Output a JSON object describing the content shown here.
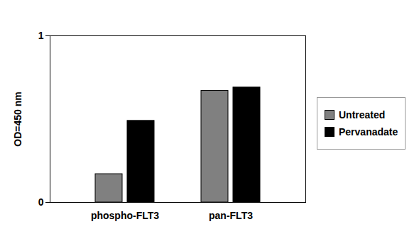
{
  "chart_data": {
    "type": "bar",
    "y_label": "OD=450 nm",
    "categories": [
      "phospho-FLT3",
      "pan-FLT3"
    ],
    "series": [
      {
        "name": "Untreated",
        "color": "#808080",
        "values": [
          0.17,
          0.67
        ]
      },
      {
        "name": "Pervanadate",
        "color": "#000000",
        "values": [
          0.49,
          0.69
        ]
      }
    ],
    "ylim": [
      0,
      1
    ],
    "yticks": [
      0,
      1
    ],
    "grid": false,
    "legend": "right"
  }
}
